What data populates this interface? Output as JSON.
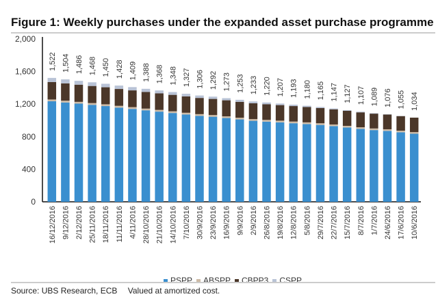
{
  "chart_data": {
    "type": "bar",
    "stacked": true,
    "title": "Figure 1: Weekly purchases under the expanded asset purchase programme",
    "xlabel": "",
    "ylabel": "",
    "ylim": [
      0,
      2000
    ],
    "yticks": [
      "0",
      "400",
      "800",
      "1,200",
      "1,600",
      "2,000"
    ],
    "grid": false,
    "legend_position": "bottom",
    "categories": [
      "16/12/2016",
      "9/12/2016",
      "2/12/2016",
      "25/11/2016",
      "18/11/2016",
      "11/11/2016",
      "4/11/2016",
      "28/10/2016",
      "21/10/2016",
      "14/10/2016",
      "7/10/2016",
      "30/9/2016",
      "23/9/2016",
      "16/9/2016",
      "9/9/2016",
      "2/9/2016",
      "26/8/2016",
      "19/8/2016",
      "12/8/2016",
      "5/8/2016",
      "29/7/2016",
      "22/7/2016",
      "15/7/2016",
      "8/7/2016",
      "1/7/2016",
      "24/6/2016",
      "17/6/2016",
      "10/6/2016"
    ],
    "totals": [
      "1,522",
      "1,504",
      "1,486",
      "1,468",
      "1,450",
      "1,428",
      "1,409",
      "1,388",
      "1,368",
      "1,348",
      "1,327",
      "1,306",
      "1,292",
      "1,273",
      "1,253",
      "1,233",
      "1,220",
      "1,207",
      "1,193",
      "1,180",
      "1,165",
      "1,147",
      "1,127",
      "1,107",
      "1,089",
      "1,076",
      "1,055",
      "1,034"
    ],
    "series": [
      {
        "name": "PSPP",
        "color": "#3a8fcf",
        "values": [
          1235,
          1220,
          1206,
          1191,
          1176,
          1157,
          1141,
          1124,
          1108,
          1091,
          1073,
          1056,
          1045,
          1029,
          1012,
          995,
          985,
          976,
          965,
          955,
          944,
          930,
          913,
          896,
          881,
          871,
          854,
          836
        ]
      },
      {
        "name": "ABSPP",
        "color": "#cdbba6",
        "values": [
          22,
          22,
          22,
          22,
          22,
          22,
          22,
          21,
          21,
          21,
          21,
          21,
          21,
          21,
          21,
          21,
          21,
          21,
          21,
          21,
          21,
          20,
          20,
          20,
          20,
          20,
          20,
          20
        ]
      },
      {
        "name": "CBPP3",
        "color": "#4b3729",
        "values": [
          214,
          213,
          211,
          210,
          209,
          207,
          206,
          205,
          203,
          202,
          201,
          199,
          198,
          197,
          195,
          194,
          193,
          191,
          190,
          189,
          187,
          186,
          185,
          183,
          182,
          181,
          179,
          178
        ]
      },
      {
        "name": "CSPP",
        "color": "#b9c3d6",
        "values": [
          51,
          49,
          47,
          45,
          43,
          42,
          40,
          38,
          36,
          34,
          32,
          30,
          28,
          26,
          25,
          23,
          21,
          19,
          17,
          15,
          13,
          11,
          9,
          8,
          6,
          4,
          2,
          0
        ]
      }
    ]
  },
  "source": {
    "text": "Source: UBS Research, ECB",
    "note": "Valued at amortized cost."
  }
}
